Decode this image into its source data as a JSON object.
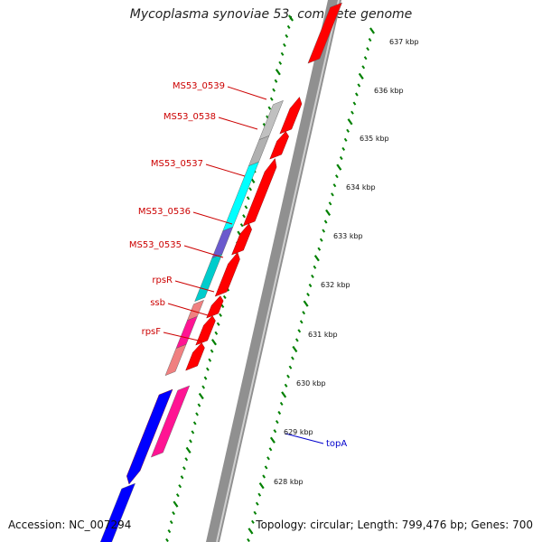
{
  "title": "Mycoplasma synoviae 53, complete genome",
  "footer": {
    "accession": "Accession: NC_007294",
    "topology": "Topology: circular; Length: 799,476 bp; Genes: 700"
  },
  "colors": {
    "forward_cds": "#ff0000",
    "reverse_cds": "#0000ff",
    "backbone": "#909090",
    "tick": "#008000",
    "gene_label": "#cc0000",
    "highlight_label": "#0000cc",
    "topA_track": "#ff1493"
  },
  "scale": {
    "labels": [
      "637 kbp",
      "636 kbp",
      "635 kbp",
      "634 kbp",
      "633 kbp",
      "632 kbp",
      "631 kbp",
      "630 kbp",
      "629 kbp",
      "628 kbp"
    ]
  },
  "gene_labels": [
    {
      "text": "MS53_0539",
      "color": "red"
    },
    {
      "text": "MS53_0538",
      "color": "red"
    },
    {
      "text": "MS53_0537",
      "color": "red"
    },
    {
      "text": "MS53_0536",
      "color": "red"
    },
    {
      "text": "MS53_0535",
      "color": "red"
    },
    {
      "text": "rpsR",
      "color": "red"
    },
    {
      "text": "ssb",
      "color": "red"
    },
    {
      "text": "rpsF",
      "color": "red"
    },
    {
      "text": "topA",
      "color": "blue"
    }
  ]
}
